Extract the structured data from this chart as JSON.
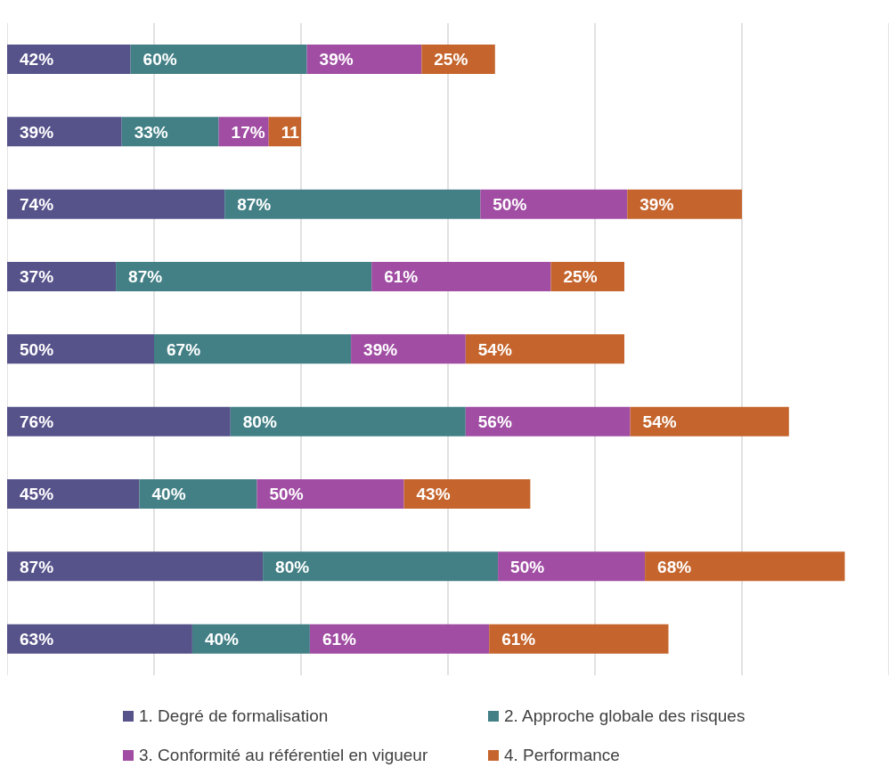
{
  "chart_data": {
    "type": "bar",
    "orientation": "horizontal",
    "stacked": true,
    "categories": [
      null,
      null,
      null,
      null,
      null,
      null,
      null,
      null,
      null
    ],
    "series": [
      {
        "name": "1. Degré de formalisation",
        "color": "#56528a",
        "values": [
          42,
          39,
          74,
          37,
          50,
          76,
          45,
          87,
          63
        ],
        "value_labels": [
          "42%",
          "39%",
          "74%",
          "37%",
          "50%",
          "76%",
          "45%",
          "87%",
          "63%"
        ]
      },
      {
        "name": "2. Approche globale des risques",
        "color": "#438086",
        "values": [
          60,
          33,
          87,
          87,
          67,
          80,
          40,
          80,
          40
        ],
        "value_labels": [
          "60%",
          "33%",
          "87%",
          "87%",
          "67%",
          "80%",
          "40%",
          "80%",
          "40%"
        ]
      },
      {
        "name": "3. Conformité au référentiel en vigueur",
        "color": "#a04da3",
        "values": [
          39,
          17,
          50,
          61,
          39,
          56,
          50,
          50,
          61
        ],
        "value_labels": [
          "39%",
          "17%",
          "50%",
          "61%",
          "39%",
          "56%",
          "50%",
          "50%",
          "61%"
        ]
      },
      {
        "name": "4. Performance",
        "color": "#c5652d",
        "values": [
          25,
          11,
          39,
          25,
          54,
          54,
          43,
          68,
          61
        ],
        "value_labels": [
          "25%",
          "11",
          "39%",
          "25%",
          "54%",
          "54%",
          "43%",
          "68%",
          "61%"
        ]
      }
    ],
    "xlim": [
      0,
      300
    ],
    "tick_labels": false,
    "grid": "x",
    "legend": "bottom"
  }
}
